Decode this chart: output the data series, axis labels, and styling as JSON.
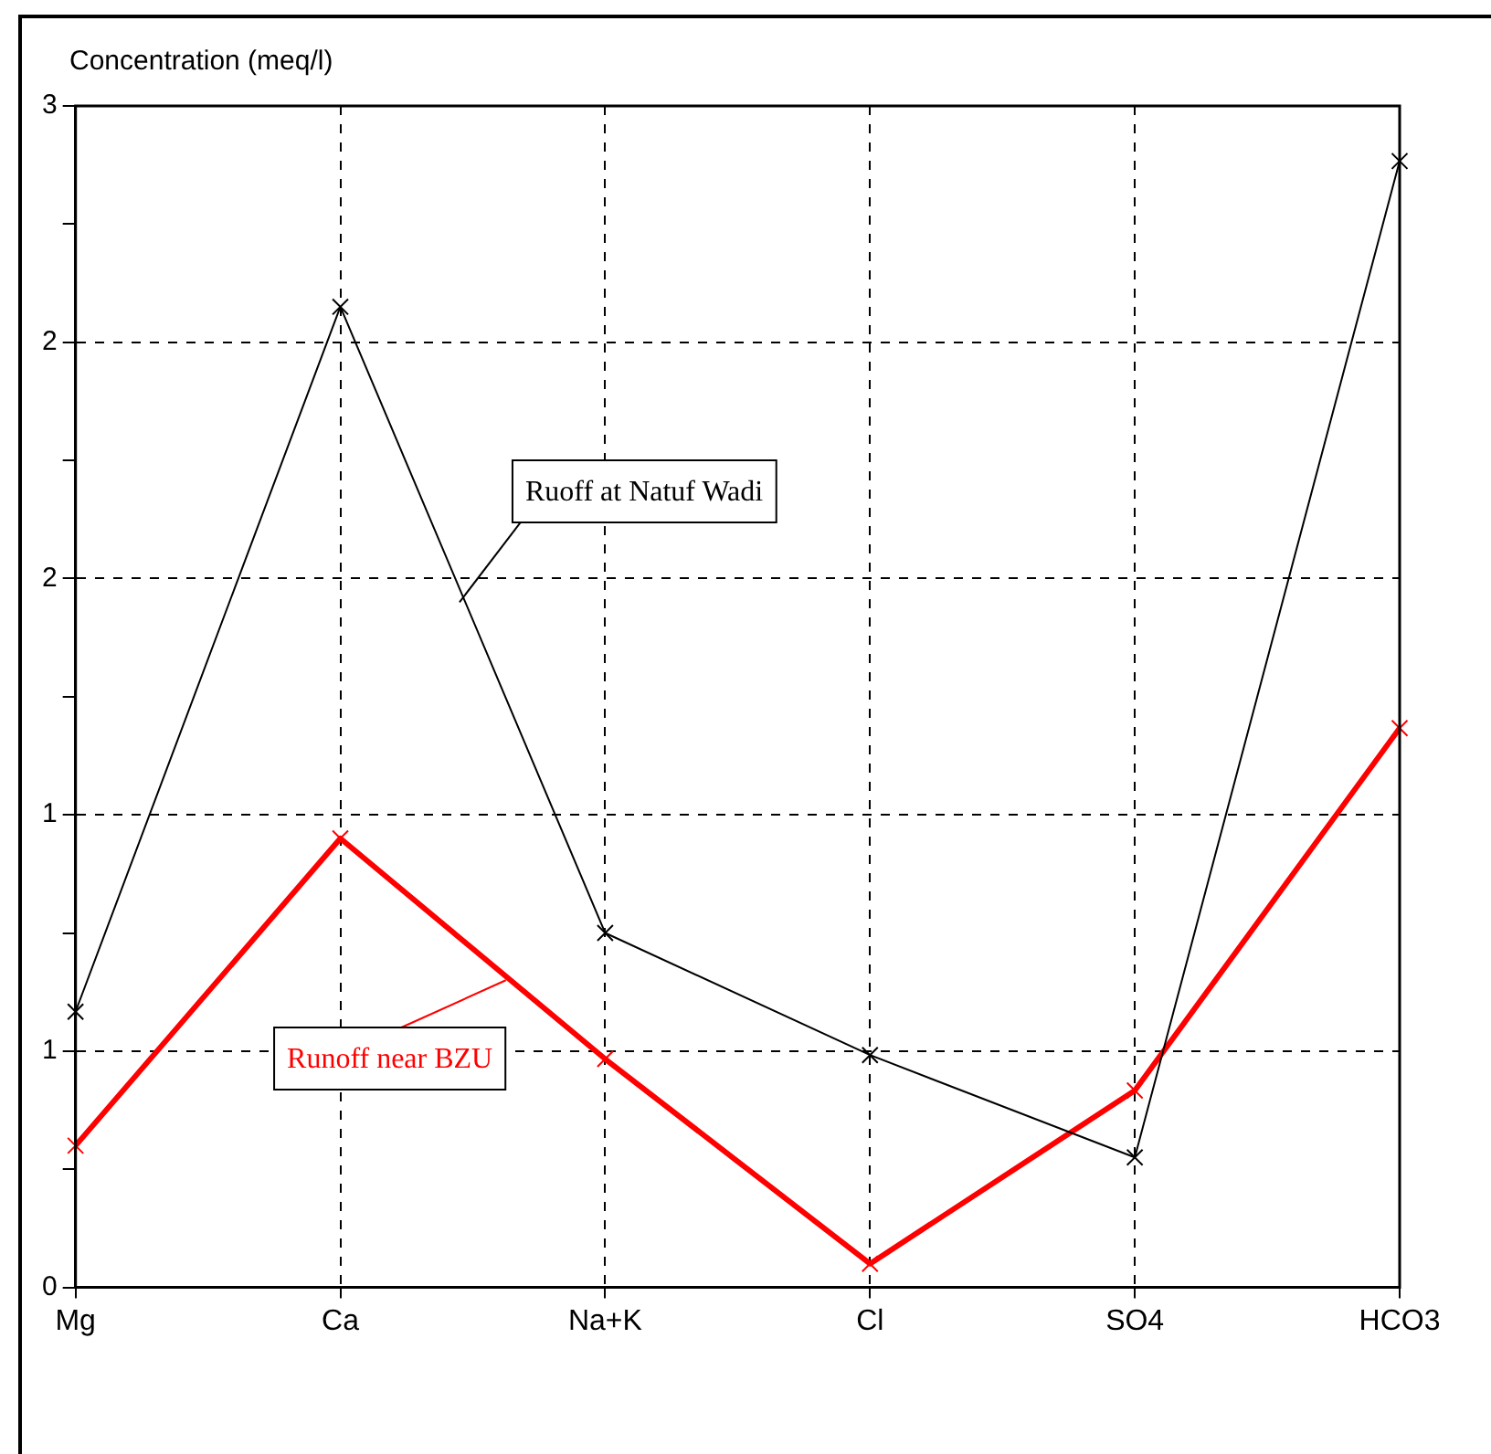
{
  "chart_data": {
    "type": "line",
    "ylabel": "Concentration (meq/l)",
    "categories": [
      "Mg",
      "Ca",
      "Na+K",
      "Cl",
      "SO4",
      "HCO3"
    ],
    "series": [
      {
        "name": "Ruoff at Natuf Wadi",
        "color": "#000000",
        "values": [
          0.7,
          2.49,
          0.9,
          0.59,
          0.33,
          2.86
        ]
      },
      {
        "name": "Runoff near BZU",
        "color": "#ff0000",
        "values": [
          0.36,
          1.14,
          0.58,
          0.06,
          0.5,
          1.42
        ]
      }
    ],
    "ylim": [
      0,
      3
    ],
    "yticks": [
      0,
      {
        "value": 0.3,
        "label": null
      },
      {
        "value": 0.6,
        "label": "1"
      },
      {
        "value": 0.9,
        "label": null
      },
      {
        "value": 1.2,
        "label": "1"
      },
      {
        "value": 1.5,
        "label": null
      },
      {
        "value": 1.8,
        "label": "2"
      },
      {
        "value": 2.1,
        "label": null
      },
      {
        "value": 2.4,
        "label": "2"
      },
      {
        "value": 2.7,
        "label": null
      },
      {
        "value": 3,
        "label": "3"
      }
    ],
    "grid": true,
    "marker": "cross",
    "line_style": "solid"
  }
}
